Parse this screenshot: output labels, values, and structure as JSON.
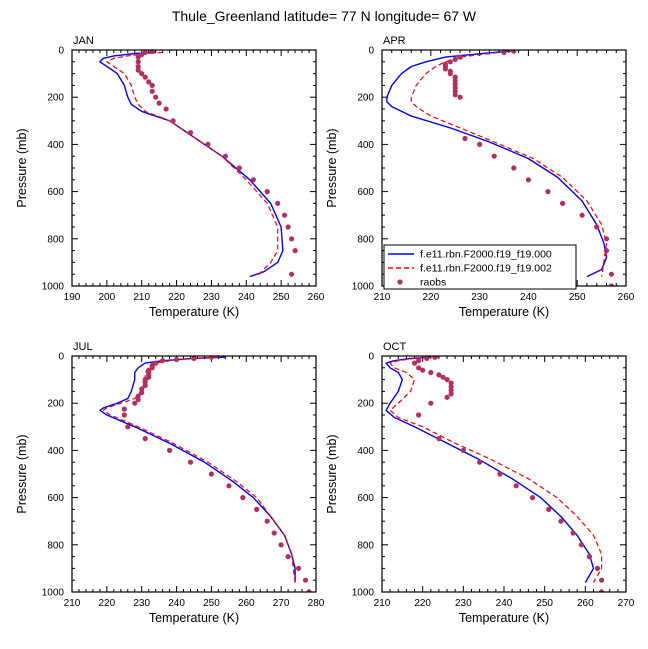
{
  "figure_title": "Thule_Greenland  latitude= 77 N longitude= 67 W",
  "legend": {
    "entries": [
      {
        "label": "f.e11.rbn.F2000.f19_f19.000",
        "color": "#0000ff",
        "style": "solid"
      },
      {
        "label": "f.e11.rbn.F2000.f19_f19.002",
        "color": "#ff0000",
        "style": "dashed"
      },
      {
        "label": "raobs",
        "color": "#b03060",
        "style": "marker"
      }
    ]
  },
  "chart_data": [
    {
      "type": "line",
      "title": "JAN",
      "xlabel": "Temperature (K)",
      "ylabel": "Pressure (mb)",
      "xlim": [
        190,
        260
      ],
      "ylim": [
        1000,
        0
      ],
      "xticks": [
        "190",
        "200",
        "210",
        "220",
        "230",
        "240",
        "250",
        "260"
      ],
      "yticks": [
        "0",
        "200",
        "400",
        "600",
        "800",
        "1000"
      ],
      "series": [
        {
          "name": "f.e11.rbn.F2000.f19_f19.000",
          "x": [
            214,
            208,
            202,
            199,
            198,
            200,
            203,
            205,
            206,
            207,
            210,
            218,
            225,
            233,
            241,
            247,
            250,
            250.5,
            249,
            245,
            241
          ],
          "y": [
            10,
            15,
            25,
            35,
            50,
            70,
            100,
            150,
            200,
            230,
            260,
            300,
            370,
            450,
            550,
            650,
            750,
            850,
            900,
            940,
            960
          ]
        },
        {
          "name": "f.e11.rbn.F2000.f19_f19.002",
          "x": [
            216,
            212,
            206,
            202,
            200,
            202,
            205,
            207,
            208,
            209,
            211,
            218,
            225,
            233,
            240,
            246,
            249,
            249,
            247,
            243
          ],
          "y": [
            10,
            15,
            25,
            35,
            50,
            70,
            100,
            150,
            200,
            230,
            260,
            300,
            370,
            450,
            550,
            650,
            750,
            850,
            900,
            960
          ]
        },
        {
          "name": "raobs",
          "x": [
            213,
            211,
            210,
            209,
            209,
            209,
            209,
            210,
            211,
            212,
            213,
            213,
            214,
            215,
            217,
            219,
            224,
            229,
            234,
            238,
            242,
            246,
            249,
            251,
            252,
            253,
            254,
            253
          ],
          "y": [
            5,
            10,
            20,
            30,
            50,
            70,
            85,
            100,
            115,
            135,
            150,
            175,
            200,
            225,
            250,
            300,
            350,
            400,
            450,
            500,
            550,
            600,
            650,
            700,
            750,
            800,
            850,
            950
          ]
        }
      ]
    },
    {
      "type": "line",
      "title": "APR",
      "xlabel": "Temperature (K)",
      "ylabel": "Pressure (mb)",
      "xlim": [
        210,
        260
      ],
      "ylim": [
        1000,
        0
      ],
      "xticks": [
        "210",
        "220",
        "230",
        "240",
        "250",
        "260"
      ],
      "yticks": [
        "0",
        "200",
        "400",
        "600",
        "800",
        "1000"
      ],
      "series": [
        {
          "name": "f.e11.rbn.F2000.f19_f19.000",
          "x": [
            236,
            233,
            228,
            223,
            219,
            216,
            214,
            212,
            211,
            211,
            212,
            216,
            224,
            232,
            240,
            246,
            251,
            254,
            255.5,
            256,
            255,
            252
          ],
          "y": [
            5,
            10,
            20,
            30,
            50,
            70,
            100,
            150,
            200,
            220,
            240,
            280,
            330,
            390,
            460,
            540,
            640,
            740,
            820,
            880,
            930,
            960
          ]
        },
        {
          "name": "f.e11.rbn.F2000.f19_f19.002",
          "x": [
            237,
            234,
            230,
            226,
            223,
            221,
            219,
            217,
            216,
            216,
            217,
            220,
            226,
            233,
            241,
            247,
            252,
            255,
            256,
            255
          ],
          "y": [
            5,
            10,
            20,
            30,
            50,
            70,
            100,
            150,
            200,
            220,
            240,
            280,
            330,
            390,
            460,
            540,
            640,
            740,
            820,
            960
          ]
        },
        {
          "name": "raobs",
          "x": [
            237,
            235,
            226,
            225,
            224,
            223,
            223,
            223,
            224,
            224,
            225,
            225,
            225,
            225,
            225,
            225,
            226,
            227,
            230,
            233,
            237,
            240,
            244,
            247,
            251,
            254,
            256,
            256,
            257,
            257
          ],
          "y": [
            5,
            10,
            30,
            40,
            50,
            60,
            70,
            80,
            90,
            100,
            115,
            130,
            145,
            160,
            175,
            190,
            200,
            375,
            400,
            450,
            500,
            550,
            600,
            650,
            700,
            750,
            800,
            850,
            950,
            1000
          ]
        }
      ]
    },
    {
      "type": "line",
      "title": "JUL",
      "xlabel": "Temperature (K)",
      "ylabel": "Pressure (mb)",
      "xlim": [
        210,
        280
      ],
      "ylim": [
        1000,
        0
      ],
      "xticks": [
        "210",
        "220",
        "230",
        "240",
        "250",
        "260",
        "270",
        "280"
      ],
      "yticks": [
        "0",
        "200",
        "400",
        "600",
        "800",
        "1000"
      ],
      "series": [
        {
          "name": "f.e11.rbn.F2000.f19_f19.000",
          "x": [
            254,
            245,
            236,
            231,
            229,
            228,
            228,
            227,
            226,
            223,
            219,
            218,
            220,
            228,
            238,
            248,
            256,
            262,
            267,
            271,
            273,
            274,
            274
          ],
          "y": [
            5,
            10,
            20,
            30,
            50,
            70,
            100,
            150,
            180,
            200,
            220,
            230,
            250,
            300,
            370,
            450,
            530,
            600,
            680,
            760,
            840,
            900,
            960
          ]
        },
        {
          "name": "f.e11.rbn.F2000.f19_f19.002",
          "x": [
            252,
            244,
            238,
            234,
            232,
            231,
            231,
            230,
            228,
            224,
            220,
            219,
            221,
            229,
            239,
            249,
            257,
            263,
            267,
            271,
            273,
            274
          ],
          "y": [
            5,
            10,
            20,
            30,
            50,
            70,
            100,
            150,
            180,
            200,
            220,
            230,
            250,
            300,
            370,
            450,
            530,
            600,
            680,
            760,
            840,
            960
          ]
        },
        {
          "name": "raobs",
          "x": [
            250,
            245,
            240,
            236,
            234,
            233,
            233,
            232,
            232,
            232,
            232,
            231,
            231,
            231,
            230,
            230,
            229,
            229,
            228,
            225,
            225,
            226,
            231,
            238,
            244,
            250,
            255,
            259,
            263,
            266,
            268,
            270,
            272,
            275,
            277,
            278
          ],
          "y": [
            5,
            10,
            15,
            20,
            30,
            40,
            50,
            60,
            70,
            80,
            90,
            100,
            110,
            125,
            140,
            155,
            170,
            185,
            200,
            225,
            250,
            300,
            350,
            400,
            450,
            500,
            550,
            600,
            650,
            700,
            750,
            800,
            850,
            900,
            950,
            1000
          ]
        }
      ]
    },
    {
      "type": "line",
      "title": "OCT",
      "xlabel": "Temperature (K)",
      "ylabel": "Pressure (mb)",
      "xlim": [
        210,
        270
      ],
      "ylim": [
        1000,
        0
      ],
      "xticks": [
        "210",
        "220",
        "230",
        "240",
        "250",
        "260",
        "270"
      ],
      "yticks": [
        "0",
        "200",
        "400",
        "600",
        "800",
        "1000"
      ],
      "series": [
        {
          "name": "f.e11.rbn.F2000.f19_f19.000",
          "x": [
            222,
            217,
            213,
            211,
            212,
            214,
            215,
            214,
            212,
            211,
            213,
            218,
            226,
            234,
            242,
            249,
            254,
            258,
            261,
            262,
            260
          ],
          "y": [
            5,
            10,
            20,
            30,
            50,
            70,
            100,
            150,
            200,
            230,
            260,
            300,
            370,
            440,
            520,
            600,
            680,
            760,
            840,
            900,
            960
          ]
        },
        {
          "name": "f.e11.rbn.F2000.f19_f19.002",
          "x": [
            224,
            218,
            214,
            212,
            213,
            216,
            218,
            217,
            214,
            212,
            214,
            220,
            228,
            237,
            246,
            253,
            258,
            262,
            264,
            264,
            262
          ],
          "y": [
            5,
            10,
            20,
            30,
            50,
            70,
            100,
            150,
            200,
            230,
            260,
            300,
            370,
            440,
            520,
            600,
            680,
            760,
            840,
            900,
            960
          ]
        },
        {
          "name": "raobs",
          "x": [
            223,
            221,
            219,
            218,
            219,
            220,
            222,
            224,
            225,
            226,
            227,
            227,
            227,
            227,
            226,
            222,
            219,
            224,
            230,
            234,
            239,
            243,
            247,
            251,
            254,
            257,
            259,
            261,
            263,
            264,
            264
          ],
          "y": [
            5,
            10,
            20,
            30,
            50,
            60,
            70,
            80,
            90,
            100,
            115,
            130,
            145,
            160,
            175,
            200,
            250,
            350,
            400,
            450,
            500,
            550,
            600,
            650,
            700,
            750,
            800,
            850,
            900,
            950,
            1000
          ]
        }
      ]
    }
  ]
}
